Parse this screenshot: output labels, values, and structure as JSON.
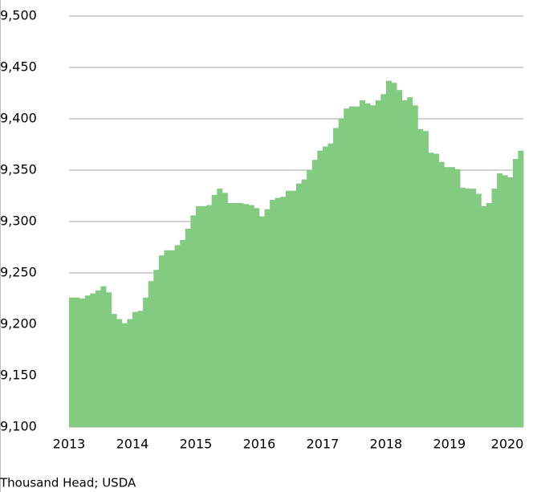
{
  "chart_data": {
    "type": "bar",
    "note": "Thousand Head; USDA",
    "categories": [
      "2013",
      null,
      null,
      null,
      null,
      null,
      null,
      null,
      null,
      null,
      null,
      null,
      "2014",
      null,
      null,
      null,
      null,
      null,
      null,
      null,
      null,
      null,
      null,
      null,
      "2015",
      null,
      null,
      null,
      null,
      null,
      null,
      null,
      null,
      null,
      null,
      null,
      "2016",
      null,
      null,
      null,
      null,
      null,
      null,
      null,
      null,
      null,
      null,
      null,
      "2017",
      null,
      null,
      null,
      null,
      null,
      null,
      null,
      null,
      null,
      null,
      null,
      "2018",
      null,
      null,
      null,
      null,
      null,
      null,
      null,
      null,
      null,
      null,
      null,
      "2019",
      null,
      null,
      null,
      null,
      null,
      null,
      null,
      null,
      null,
      null,
      null,
      "2020",
      null
    ],
    "values": [
      9226,
      9226,
      9225,
      9228,
      9230,
      9233,
      9237,
      9231,
      9210,
      9205,
      9201,
      9205,
      9212,
      9213,
      9226,
      9242,
      9253,
      9267,
      9272,
      9272,
      9277,
      9282,
      9293,
      9306,
      9315,
      9315,
      9316,
      9326,
      9332,
      9328,
      9318,
      9318,
      9318,
      9317,
      9316,
      9313,
      9305,
      9312,
      9321,
      9323,
      9324,
      9330,
      9330,
      9337,
      9341,
      9350,
      9360,
      9369,
      9373,
      9376,
      9391,
      9400,
      9410,
      9412,
      9412,
      9418,
      9415,
      9413,
      9418,
      9424,
      9437,
      9435,
      9428,
      9418,
      9421,
      9413,
      9390,
      9388,
      9367,
      9366,
      9358,
      9353,
      9353,
      9351,
      9333,
      9332,
      9332,
      9327,
      9315,
      9318,
      9332,
      9347,
      9345,
      9343,
      9361,
      9369
    ],
    "color": "#82cb80",
    "ylim": [
      9100,
      9500
    ],
    "yticks": [
      {
        "value": 9100,
        "label": "9,100"
      },
      {
        "value": 9150,
        "label": "9,150"
      },
      {
        "value": 9200,
        "label": "9,200"
      },
      {
        "value": 9250,
        "label": "9,250"
      },
      {
        "value": 9300,
        "label": "9,300"
      },
      {
        "value": 9350,
        "label": "9,350"
      },
      {
        "value": 9400,
        "label": "9,400"
      },
      {
        "value": 9450,
        "label": "9,450"
      },
      {
        "value": 9500,
        "label": "9,500"
      }
    ],
    "grid": true
  }
}
